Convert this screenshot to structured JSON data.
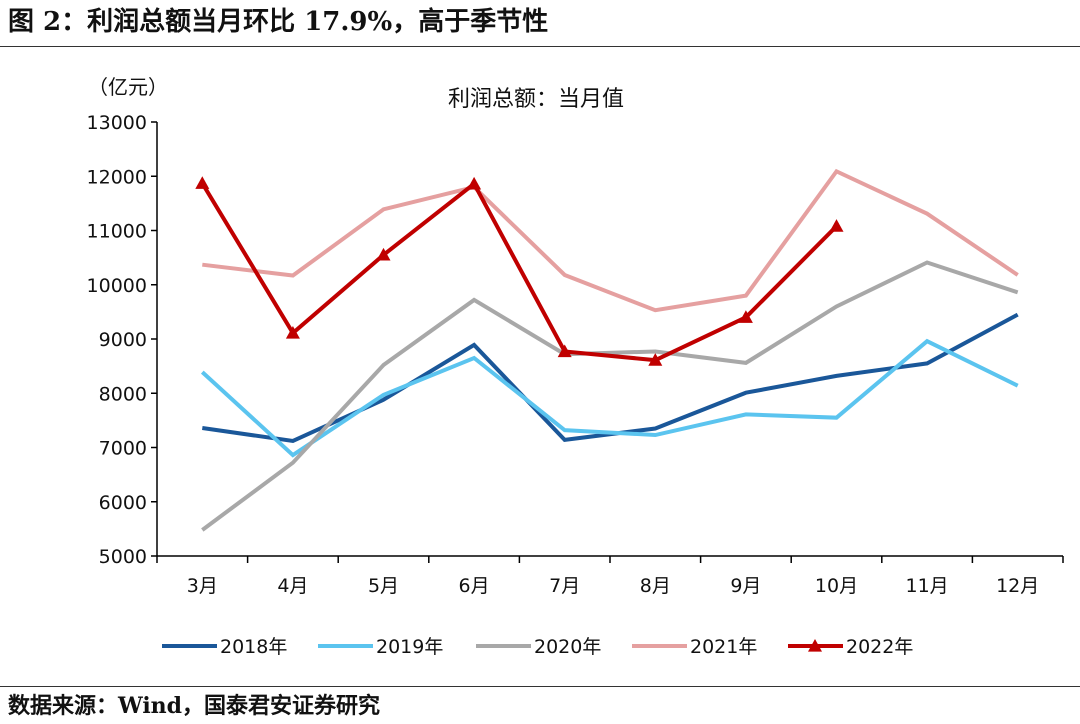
{
  "figure": {
    "title": "图 2：利润总额当月环比 17.9%，高于季节性",
    "source": "数据来源：Wind，国泰君安证券研究"
  },
  "chart_data": {
    "type": "line",
    "title": "利润总额：当月值",
    "ylabel": "（亿元）",
    "xlabel": "",
    "ylim": [
      5000,
      13000
    ],
    "yticks": [
      5000,
      6000,
      7000,
      8000,
      9000,
      10000,
      11000,
      12000,
      13000
    ],
    "categories": [
      "3月",
      "4月",
      "5月",
      "6月",
      "7月",
      "8月",
      "9月",
      "10月",
      "11月",
      "12月"
    ],
    "legend_position": "bottom",
    "grid": false,
    "series": [
      {
        "name": "2018年",
        "color": "#1a5799",
        "marker": "none",
        "values": [
          7360,
          7120,
          7880,
          8890,
          7140,
          7350,
          8010,
          8320,
          8550,
          9450
        ]
      },
      {
        "name": "2019年",
        "color": "#5bc4ef",
        "marker": "none",
        "values": [
          8390,
          6860,
          7970,
          8650,
          7320,
          7230,
          7610,
          7550,
          8960,
          8140
        ]
      },
      {
        "name": "2020年",
        "color": "#a8a8a8",
        "marker": "none",
        "values": [
          5480,
          6720,
          8520,
          9720,
          8720,
          8770,
          8560,
          9600,
          10410,
          9860
        ]
      },
      {
        "name": "2021年",
        "color": "#e5a0a0",
        "marker": "none",
        "values": [
          10370,
          10170,
          11390,
          11800,
          10180,
          9530,
          9800,
          12090,
          11310,
          10180
        ]
      },
      {
        "name": "2022年",
        "color": "#c00000",
        "marker": "triangle",
        "values": [
          11870,
          9110,
          10550,
          11860,
          8770,
          8610,
          9400,
          11080,
          null,
          null
        ]
      }
    ]
  }
}
